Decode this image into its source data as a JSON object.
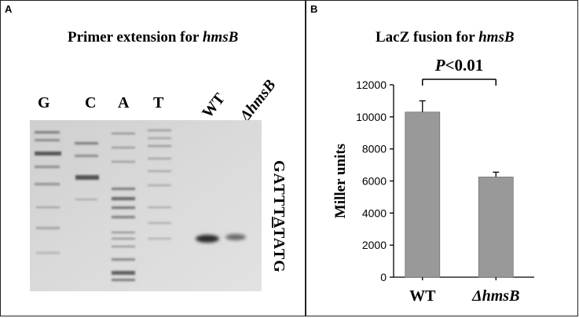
{
  "panel_a": {
    "letter": "A",
    "title_prefix": "Primer extension for ",
    "title_gene": "hmsB",
    "lanes": [
      "G",
      "C",
      "A",
      "T"
    ],
    "lane_wt": "WT",
    "lane_mutant": "ΔhmsB",
    "sequence_before": "GATTT",
    "sequence_marked": "A",
    "sequence_after": "TATG"
  },
  "panel_b": {
    "letter": "B",
    "title_prefix": "LacZ fusion for ",
    "title_gene": "hmsB",
    "significance_label": "P<0.01"
  },
  "chart_data": {
    "type": "bar",
    "categories": [
      "WT",
      "ΔhmsB"
    ],
    "values": [
      10300,
      6250
    ],
    "errors": [
      700,
      300
    ],
    "title": "LacZ fusion for hmsB",
    "xlabel": "",
    "ylabel": "Miller units",
    "ylim": [
      0,
      12000
    ],
    "yticks": [
      0,
      2000,
      4000,
      6000,
      8000,
      10000,
      12000
    ],
    "bar_color": "#999999",
    "annotation": "P<0.01"
  }
}
